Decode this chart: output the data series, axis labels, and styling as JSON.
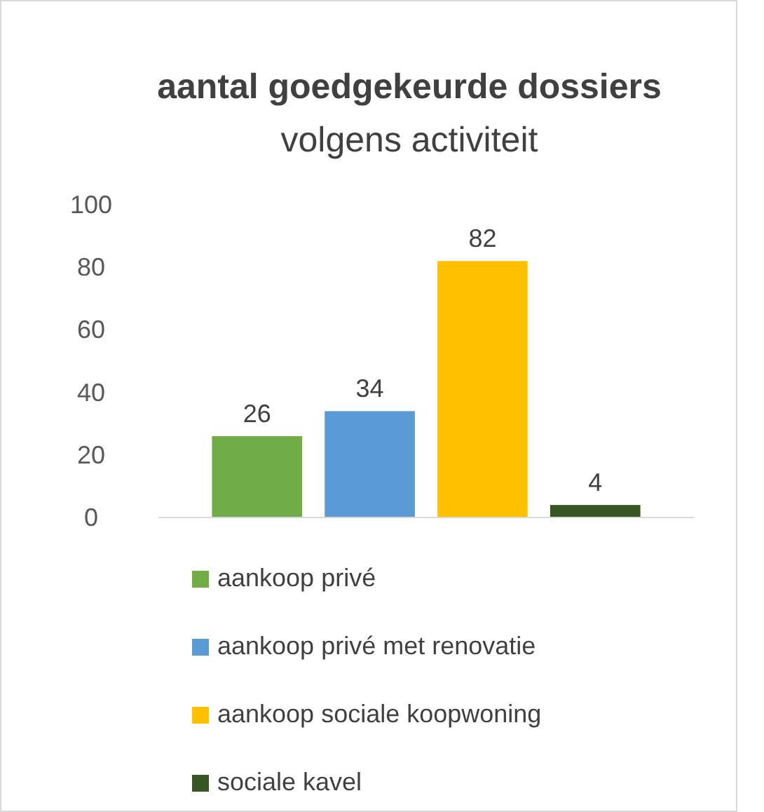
{
  "chart_data": {
    "type": "bar",
    "title": "aantal goedgekeurde dossiers",
    "subtitle": "volgens activiteit",
    "categories": [
      null
    ],
    "series": [
      {
        "name": "aankoop privé",
        "color": "#70ad47",
        "values": [
          26
        ]
      },
      {
        "name": "aankoop privé met renovatie",
        "color": "#5b9bd5",
        "values": [
          34
        ]
      },
      {
        "name": "aankoop sociale koopwoning",
        "color": "#ffc000",
        "values": [
          82
        ]
      },
      {
        "name": "sociale kavel",
        "color": "#375623",
        "values": [
          4
        ]
      }
    ],
    "ylim": [
      0,
      100
    ],
    "yticks": [
      0,
      20,
      40,
      60,
      80,
      100
    ],
    "grid": false,
    "legend": "bottom",
    "data_labels": true
  }
}
